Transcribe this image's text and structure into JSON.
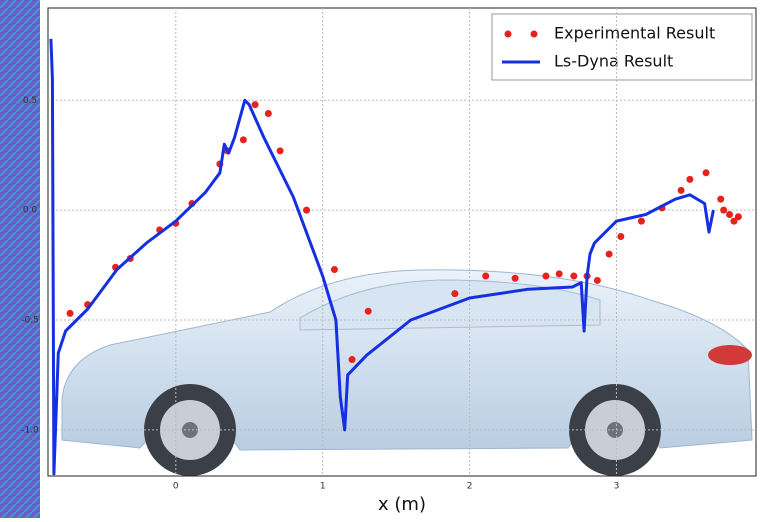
{
  "chart_data": {
    "type": "scatter",
    "x_label": "x (m)",
    "xlim": [
      -0.87,
      3.95
    ],
    "ylim": [
      -1.21,
      0.92
    ],
    "xticks": [
      0,
      1,
      2,
      3
    ],
    "yticks": [
      0.5,
      {
        "value": 0,
        "label": "0.0"
      },
      -0.5,
      {
        "value": -1,
        "label": "-1.0"
      }
    ],
    "grid": true,
    "legend": "upper right",
    "series": [
      {
        "name": "Experimental Result",
        "color": "#e8211e",
        "style": "markers",
        "x": [
          -0.72,
          -0.6,
          -0.41,
          -0.31,
          -0.11,
          0.0,
          0.11,
          0.3,
          0.35,
          0.46,
          0.54,
          0.63,
          0.71,
          0.89,
          1.08,
          1.2,
          1.31,
          1.9,
          2.11,
          2.31,
          2.52,
          2.61,
          2.71,
          2.8,
          2.87,
          2.95,
          3.03,
          3.17,
          3.31,
          3.44,
          3.5,
          3.61,
          3.71,
          3.73,
          3.77,
          3.8,
          3.83
        ],
        "values": [
          -0.47,
          -0.43,
          -0.26,
          -0.22,
          -0.09,
          -0.06,
          0.03,
          0.21,
          0.27,
          0.32,
          0.48,
          0.44,
          0.27,
          0.0,
          -0.27,
          -0.68,
          -0.46,
          -0.38,
          -0.3,
          -0.31,
          -0.3,
          -0.29,
          -0.3,
          -0.3,
          -0.32,
          -0.2,
          -0.12,
          -0.05,
          0.01,
          0.09,
          0.14,
          0.17,
          0.05,
          0.0,
          -0.02,
          -0.05,
          -0.03
        ]
      },
      {
        "name": "Ls-Dyna Result",
        "color": "#1530e0",
        "style": "line",
        "x": [
          -0.85,
          -0.84,
          -0.83,
          -0.8,
          -0.75,
          -0.6,
          -0.4,
          -0.2,
          0.0,
          0.2,
          0.3,
          0.33,
          0.36,
          0.4,
          0.47,
          0.5,
          0.6,
          0.8,
          1.0,
          1.09,
          1.12,
          1.15,
          1.17,
          1.3,
          1.6,
          2.0,
          2.4,
          2.7,
          2.76,
          2.78,
          2.8,
          2.82,
          2.85,
          3.0,
          3.2,
          3.4,
          3.5,
          3.6,
          3.63,
          3.66
        ],
        "values": [
          0.78,
          0.6,
          -1.2,
          -0.65,
          -0.55,
          -0.45,
          -0.27,
          -0.15,
          -0.05,
          0.08,
          0.17,
          0.3,
          0.26,
          0.33,
          0.5,
          0.48,
          0.33,
          0.06,
          -0.3,
          -0.5,
          -0.85,
          -1.0,
          -0.75,
          -0.66,
          -0.5,
          -0.4,
          -0.36,
          -0.35,
          -0.33,
          -0.55,
          -0.3,
          -0.2,
          -0.15,
          -0.05,
          -0.02,
          0.05,
          0.07,
          0.03,
          -0.1,
          0.0
        ]
      }
    ]
  }
}
